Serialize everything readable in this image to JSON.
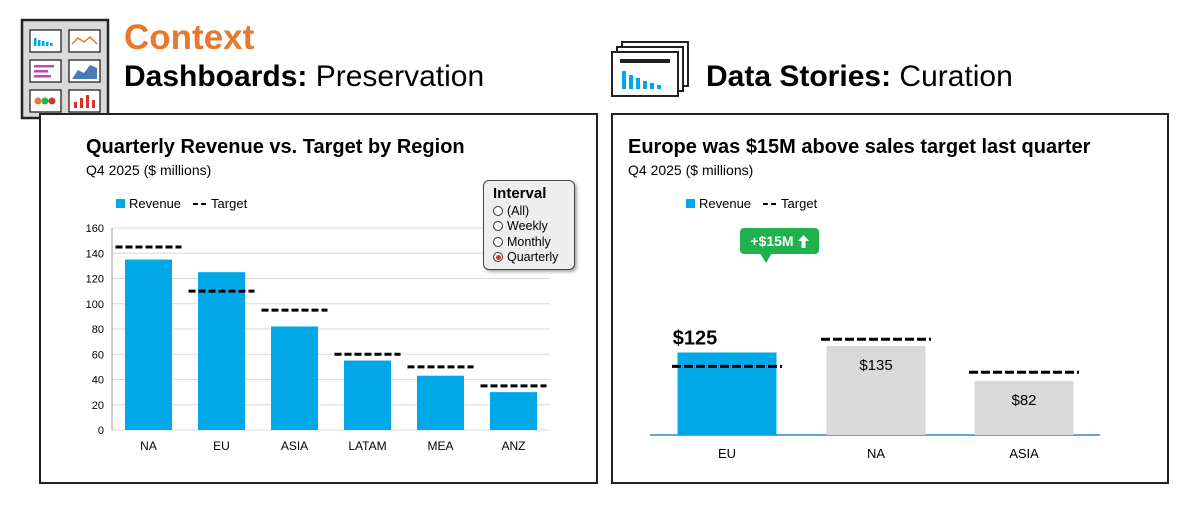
{
  "header": {
    "context": "Context",
    "left_bold": "Dashboards:",
    "left_rest": " Preservation",
    "right_bold": "Data Stories:",
    "right_rest": " Curation"
  },
  "icons": [
    "dashboard-icon",
    "stacked-slides-icon",
    "arrow-up-icon"
  ],
  "colors": {
    "accent": "#e8782f",
    "revenue": "#00a8e8",
    "muted": "#d9d9d9",
    "callout": "#1fb14b",
    "axis": "#2b87c4"
  },
  "dashboard": {
    "title": "Quarterly Revenue vs. Target by Region",
    "subtitle": "Q4 2025 ($ millions)",
    "legend_revenue": "Revenue",
    "legend_target": "Target",
    "interval": {
      "title": "Interval",
      "options": [
        "(All)",
        "Weekly",
        "Monthly",
        "Quarterly"
      ],
      "selected": "Quarterly"
    }
  },
  "story": {
    "title": "Europe was $15M above sales target last quarter",
    "subtitle": "Q4 2025 ($ millions)",
    "legend_revenue": "Revenue",
    "legend_target": "Target",
    "callout": "+$15M"
  },
  "chart_data": [
    {
      "type": "bar",
      "categories": [
        "NA",
        "EU",
        "ASIA",
        "LATAM",
        "MEA",
        "ANZ"
      ],
      "series": [
        {
          "name": "Revenue",
          "values": [
            135,
            125,
            82,
            55,
            43,
            30
          ]
        },
        {
          "name": "Target",
          "values": [
            145,
            110,
            95,
            60,
            50,
            35
          ]
        }
      ],
      "ylim": [
        0,
        160
      ],
      "yticks": [
        0,
        20,
        40,
        60,
        80,
        100,
        120,
        140,
        160
      ],
      "grid": true,
      "legend": "top-left"
    },
    {
      "type": "bar",
      "categories": [
        "EU",
        "NA",
        "ASIA"
      ],
      "series": [
        {
          "name": "Revenue",
          "values": [
            125,
            135,
            82
          ]
        },
        {
          "name": "Target",
          "values": [
            110,
            145,
            95
          ]
        }
      ],
      "data_labels": [
        "$125",
        "$135",
        "$82"
      ],
      "highlight": "EU",
      "grid": false,
      "legend": "top-left"
    }
  ]
}
